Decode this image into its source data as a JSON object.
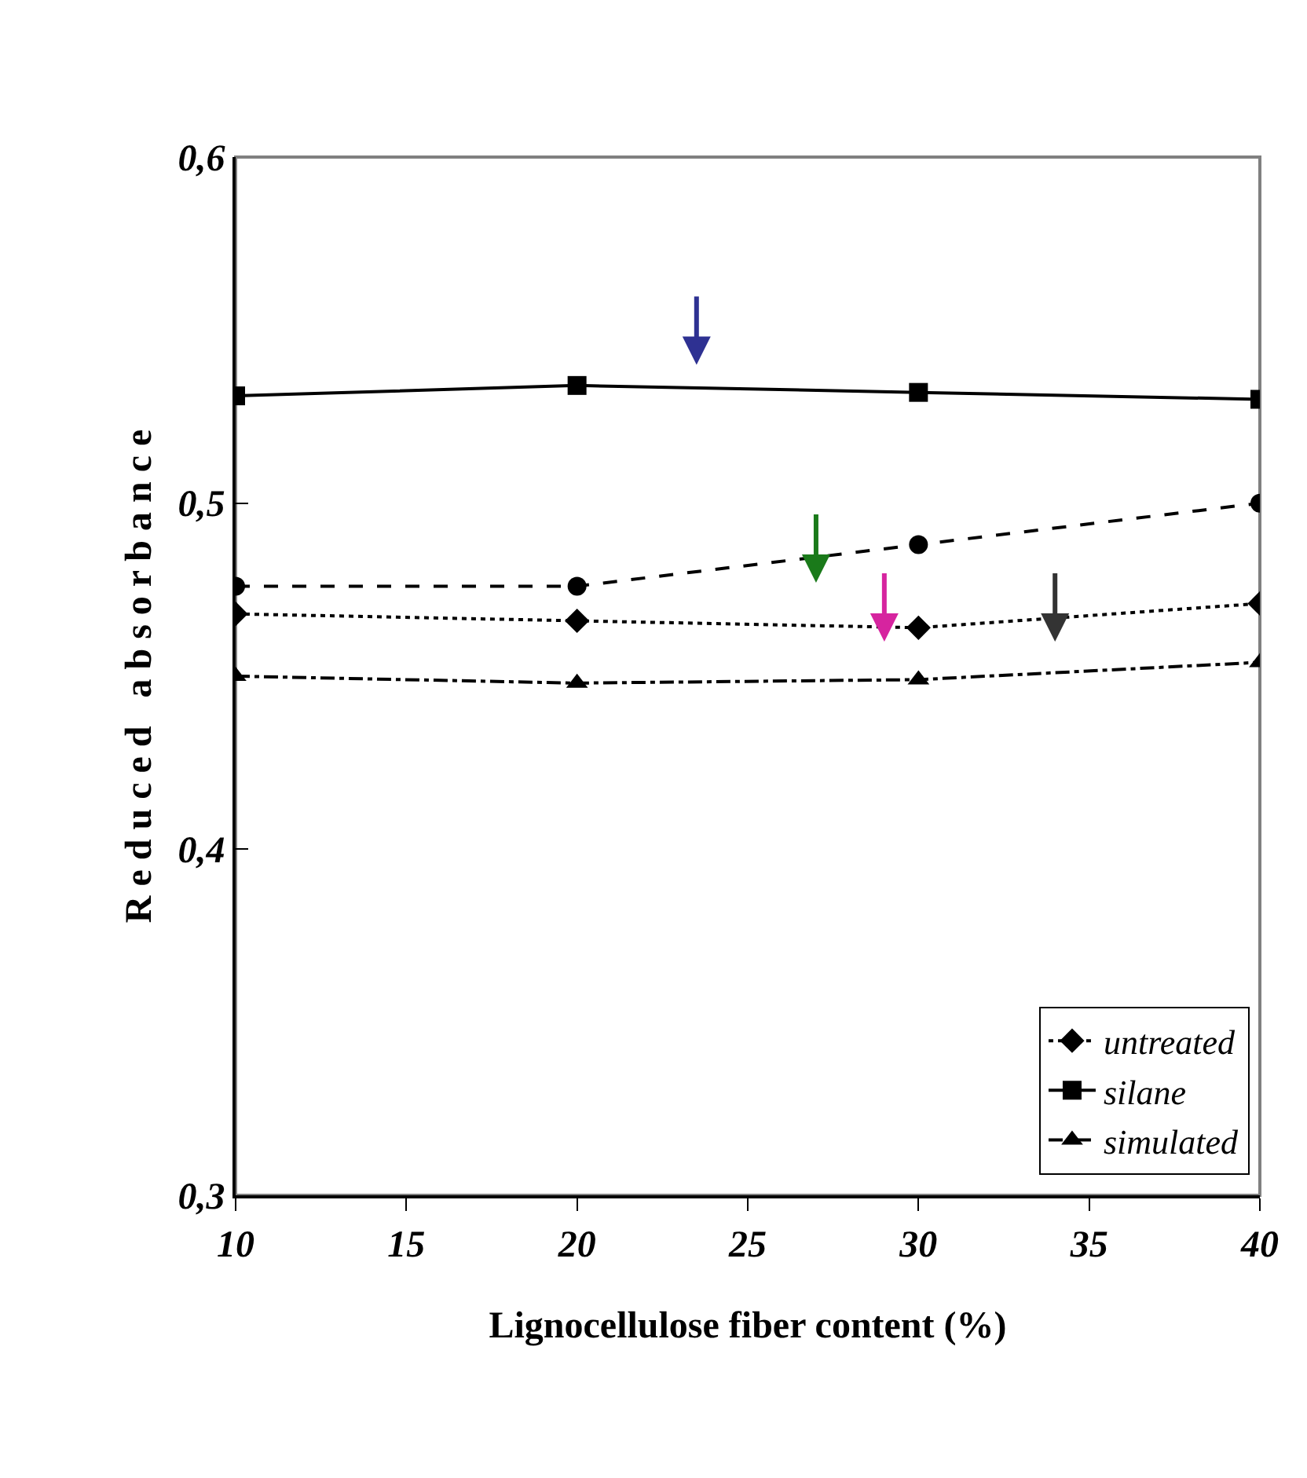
{
  "chart_data": {
    "type": "line",
    "xlabel": "Lignocellulose fiber content (%)",
    "ylabel": "R e d u c e d   a b s o r b a n c e",
    "x": [
      10,
      20,
      30,
      40
    ],
    "series": [
      {
        "name": "untreated",
        "color": "#000000",
        "marker": "diamond",
        "line_style": "dotted",
        "values": [
          0.468,
          0.466,
          0.464,
          0.471
        ]
      },
      {
        "name": "silane",
        "color": "#000000",
        "marker": "square",
        "line_style": "solid",
        "values": [
          0.531,
          0.534,
          0.532,
          0.53
        ]
      },
      {
        "color": "#000000",
        "marker": "circle",
        "line_style": "dashed",
        "values": [
          0.476,
          0.476,
          0.488,
          0.5
        ]
      },
      {
        "name": "simulated",
        "color": "#000000",
        "marker": "triangle",
        "line_style": "dashdot",
        "values": [
          0.45,
          0.448,
          0.449,
          0.454
        ]
      }
    ],
    "xlim": [
      10,
      40
    ],
    "xticks": [
      10,
      15,
      20,
      25,
      30,
      35,
      40
    ],
    "ylim": [
      0.3,
      0.6
    ],
    "yticks": [
      {
        "value": 0.3,
        "label": "0,3"
      },
      {
        "value": 0.4,
        "label": "0,4"
      },
      {
        "value": 0.5,
        "label": "0,5"
      },
      {
        "value": 0.6,
        "label": "0,6"
      }
    ],
    "grid": false,
    "legend": "bottom right"
  }
}
